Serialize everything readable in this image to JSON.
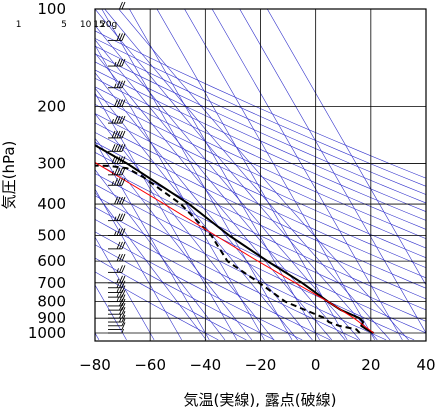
{
  "chart_data": {
    "type": "line",
    "xlabel": "気温(実線), 露点(破線)",
    "ylabel": "気圧(hPa)",
    "x_ticks": [
      -80,
      -60,
      -40,
      -20,
      0,
      20,
      40
    ],
    "y_ticks": [
      100,
      200,
      300,
      400,
      500,
      600,
      700,
      800,
      900,
      1000
    ],
    "xlim": [
      -80,
      40
    ],
    "ylim": [
      1050,
      100
    ],
    "y_scale": "log",
    "grid": true,
    "mixing_ratio_labels": [
      "1",
      "5",
      "10",
      "15",
      "20g"
    ],
    "mixing_ratio_values": [
      1,
      5,
      10,
      15,
      20
    ],
    "series": [
      {
        "style": "solid",
        "color": "#000000",
        "points": [
          {
            "p": 1000,
            "t": 21.0
          },
          {
            "p": 975,
            "t": 19.2
          },
          {
            "p": 950,
            "t": 18.0
          },
          {
            "p": 925,
            "t": 19.5
          },
          {
            "p": 900,
            "t": 19.0
          },
          {
            "p": 850,
            "t": 14.0
          },
          {
            "p": 800,
            "t": 11.0
          },
          {
            "p": 700,
            "t": 5.5
          },
          {
            "p": 600,
            "t": -2.5
          },
          {
            "p": 500,
            "t": -11.0
          },
          {
            "p": 400,
            "t": -19.0
          },
          {
            "p": 300,
            "t": -33.0
          },
          {
            "p": 250,
            "t": -44.0
          },
          {
            "p": 200,
            "t": -55.0
          },
          {
            "p": 190,
            "t": -59.0
          },
          {
            "p": 180,
            "t": -61.0
          },
          {
            "p": 170,
            "t": -60.0
          },
          {
            "p": 150,
            "t": -52.0
          },
          {
            "p": 130,
            "t": -57.0
          },
          {
            "p": 115,
            "t": -62.0
          },
          {
            "p": 100,
            "t": -63.0
          }
        ]
      },
      {
        "style": "dashed",
        "color": "#000000",
        "points": [
          {
            "p": 1000,
            "t": 16.0
          },
          {
            "p": 975,
            "t": 15.5
          },
          {
            "p": 950,
            "t": 10.0
          },
          {
            "p": 925,
            "t": 7.0
          },
          {
            "p": 900,
            "t": 6.5
          },
          {
            "p": 850,
            "t": 1.0
          },
          {
            "p": 800,
            "t": -4.5
          },
          {
            "p": 700,
            "t": -10.0
          },
          {
            "p": 600,
            "t": -17.0
          },
          {
            "p": 500,
            "t": -17.5
          },
          {
            "p": 400,
            "t": -22.0
          },
          {
            "p": 330,
            "t": -30.0
          },
          {
            "p": 310,
            "t": -34.0
          },
          {
            "p": 305,
            "t": -40.0
          },
          {
            "p": 300,
            "t": -75.0
          }
        ]
      },
      {
        "style": "solid",
        "color": "#ff0000",
        "points": [
          {
            "p": 1000,
            "t": 21.0
          },
          {
            "p": 900,
            "t": 17.0
          },
          {
            "p": 850,
            "t": 14.0
          },
          {
            "p": 800,
            "t": 11.0
          },
          {
            "p": 700,
            "t": 3.0
          },
          {
            "p": 600,
            "t": -6.0
          },
          {
            "p": 500,
            "t": -16.0
          },
          {
            "p": 400,
            "t": -28.0
          },
          {
            "p": 300,
            "t": -44.0
          },
          {
            "p": 250,
            "t": -54.0
          },
          {
            "p": 200,
            "t": -66.0
          },
          {
            "p": 175,
            "t": -80.0
          }
        ]
      }
    ],
    "wind_barbs": [
      {
        "p": 1000,
        "spd": 5
      },
      {
        "p": 975,
        "spd": 10
      },
      {
        "p": 950,
        "spd": 10
      },
      {
        "p": 925,
        "spd": 15
      },
      {
        "p": 900,
        "spd": 15
      },
      {
        "p": 875,
        "spd": 20
      },
      {
        "p": 850,
        "spd": 20
      },
      {
        "p": 825,
        "spd": 20
      },
      {
        "p": 800,
        "spd": 25
      },
      {
        "p": 775,
        "spd": 25
      },
      {
        "p": 750,
        "spd": 25
      },
      {
        "p": 725,
        "spd": 25
      },
      {
        "p": 700,
        "spd": 25
      },
      {
        "p": 650,
        "spd": 25
      },
      {
        "p": 600,
        "spd": 30
      },
      {
        "p": 550,
        "spd": 30
      },
      {
        "p": 500,
        "spd": 35
      },
      {
        "p": 450,
        "spd": 35
      },
      {
        "p": 400,
        "spd": 40
      },
      {
        "p": 350,
        "spd": 45
      },
      {
        "p": 325,
        "spd": 45
      },
      {
        "p": 300,
        "spd": 50
      },
      {
        "p": 275,
        "spd": 50
      },
      {
        "p": 250,
        "spd": 50
      },
      {
        "p": 225,
        "spd": 45
      },
      {
        "p": 200,
        "spd": 40
      },
      {
        "p": 175,
        "spd": 35
      },
      {
        "p": 150,
        "spd": 35
      },
      {
        "p": 125,
        "spd": 30
      },
      {
        "p": 100,
        "spd": 20
      }
    ],
    "colors": {
      "temperature": "#000000",
      "dewpoint": "#000000",
      "parcel": "#ff0000",
      "background_lines": "#3333cc",
      "grid": "#000000"
    }
  }
}
